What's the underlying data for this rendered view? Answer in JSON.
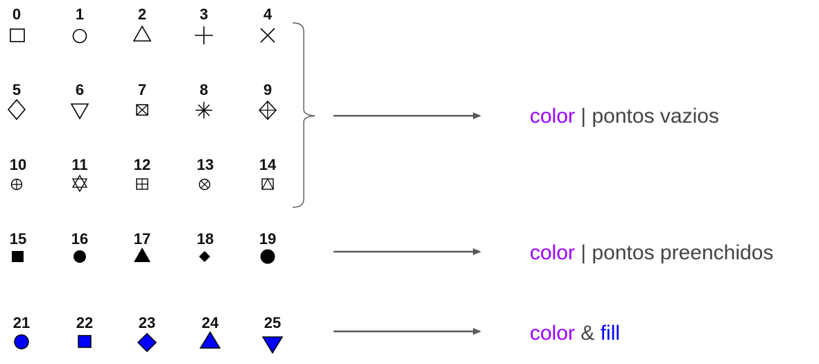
{
  "pch_rows": [
    {
      "codes": [
        "0",
        "1",
        "2",
        "3",
        "4"
      ]
    },
    {
      "codes": [
        "5",
        "6",
        "7",
        "8",
        "9"
      ]
    },
    {
      "codes": [
        "10",
        "11",
        "12",
        "13",
        "14"
      ]
    },
    {
      "codes": [
        "15",
        "16",
        "17",
        "18",
        "19"
      ]
    },
    {
      "codes": [
        "21",
        "22",
        "23",
        "24",
        "25"
      ]
    }
  ],
  "groups": [
    {
      "parts": [
        {
          "text": "color",
          "color": "#9900ff"
        },
        {
          "text": " | pontos vazios",
          "color": "#444444"
        }
      ]
    },
    {
      "parts": [
        {
          "text": "color",
          "color": "#9900ff"
        },
        {
          "text": " | pontos preenchidos",
          "color": "#444444"
        }
      ]
    },
    {
      "parts": [
        {
          "text": "color",
          "color": "#9900ff"
        },
        {
          "text": " & ",
          "color": "#444444"
        },
        {
          "text": "fill",
          "color": "#0000ff"
        }
      ]
    }
  ],
  "colors": {
    "symbol_stroke": "#000000",
    "fill_blue": "#0000ff",
    "arrow": "#595959",
    "bracket": "#595959"
  }
}
